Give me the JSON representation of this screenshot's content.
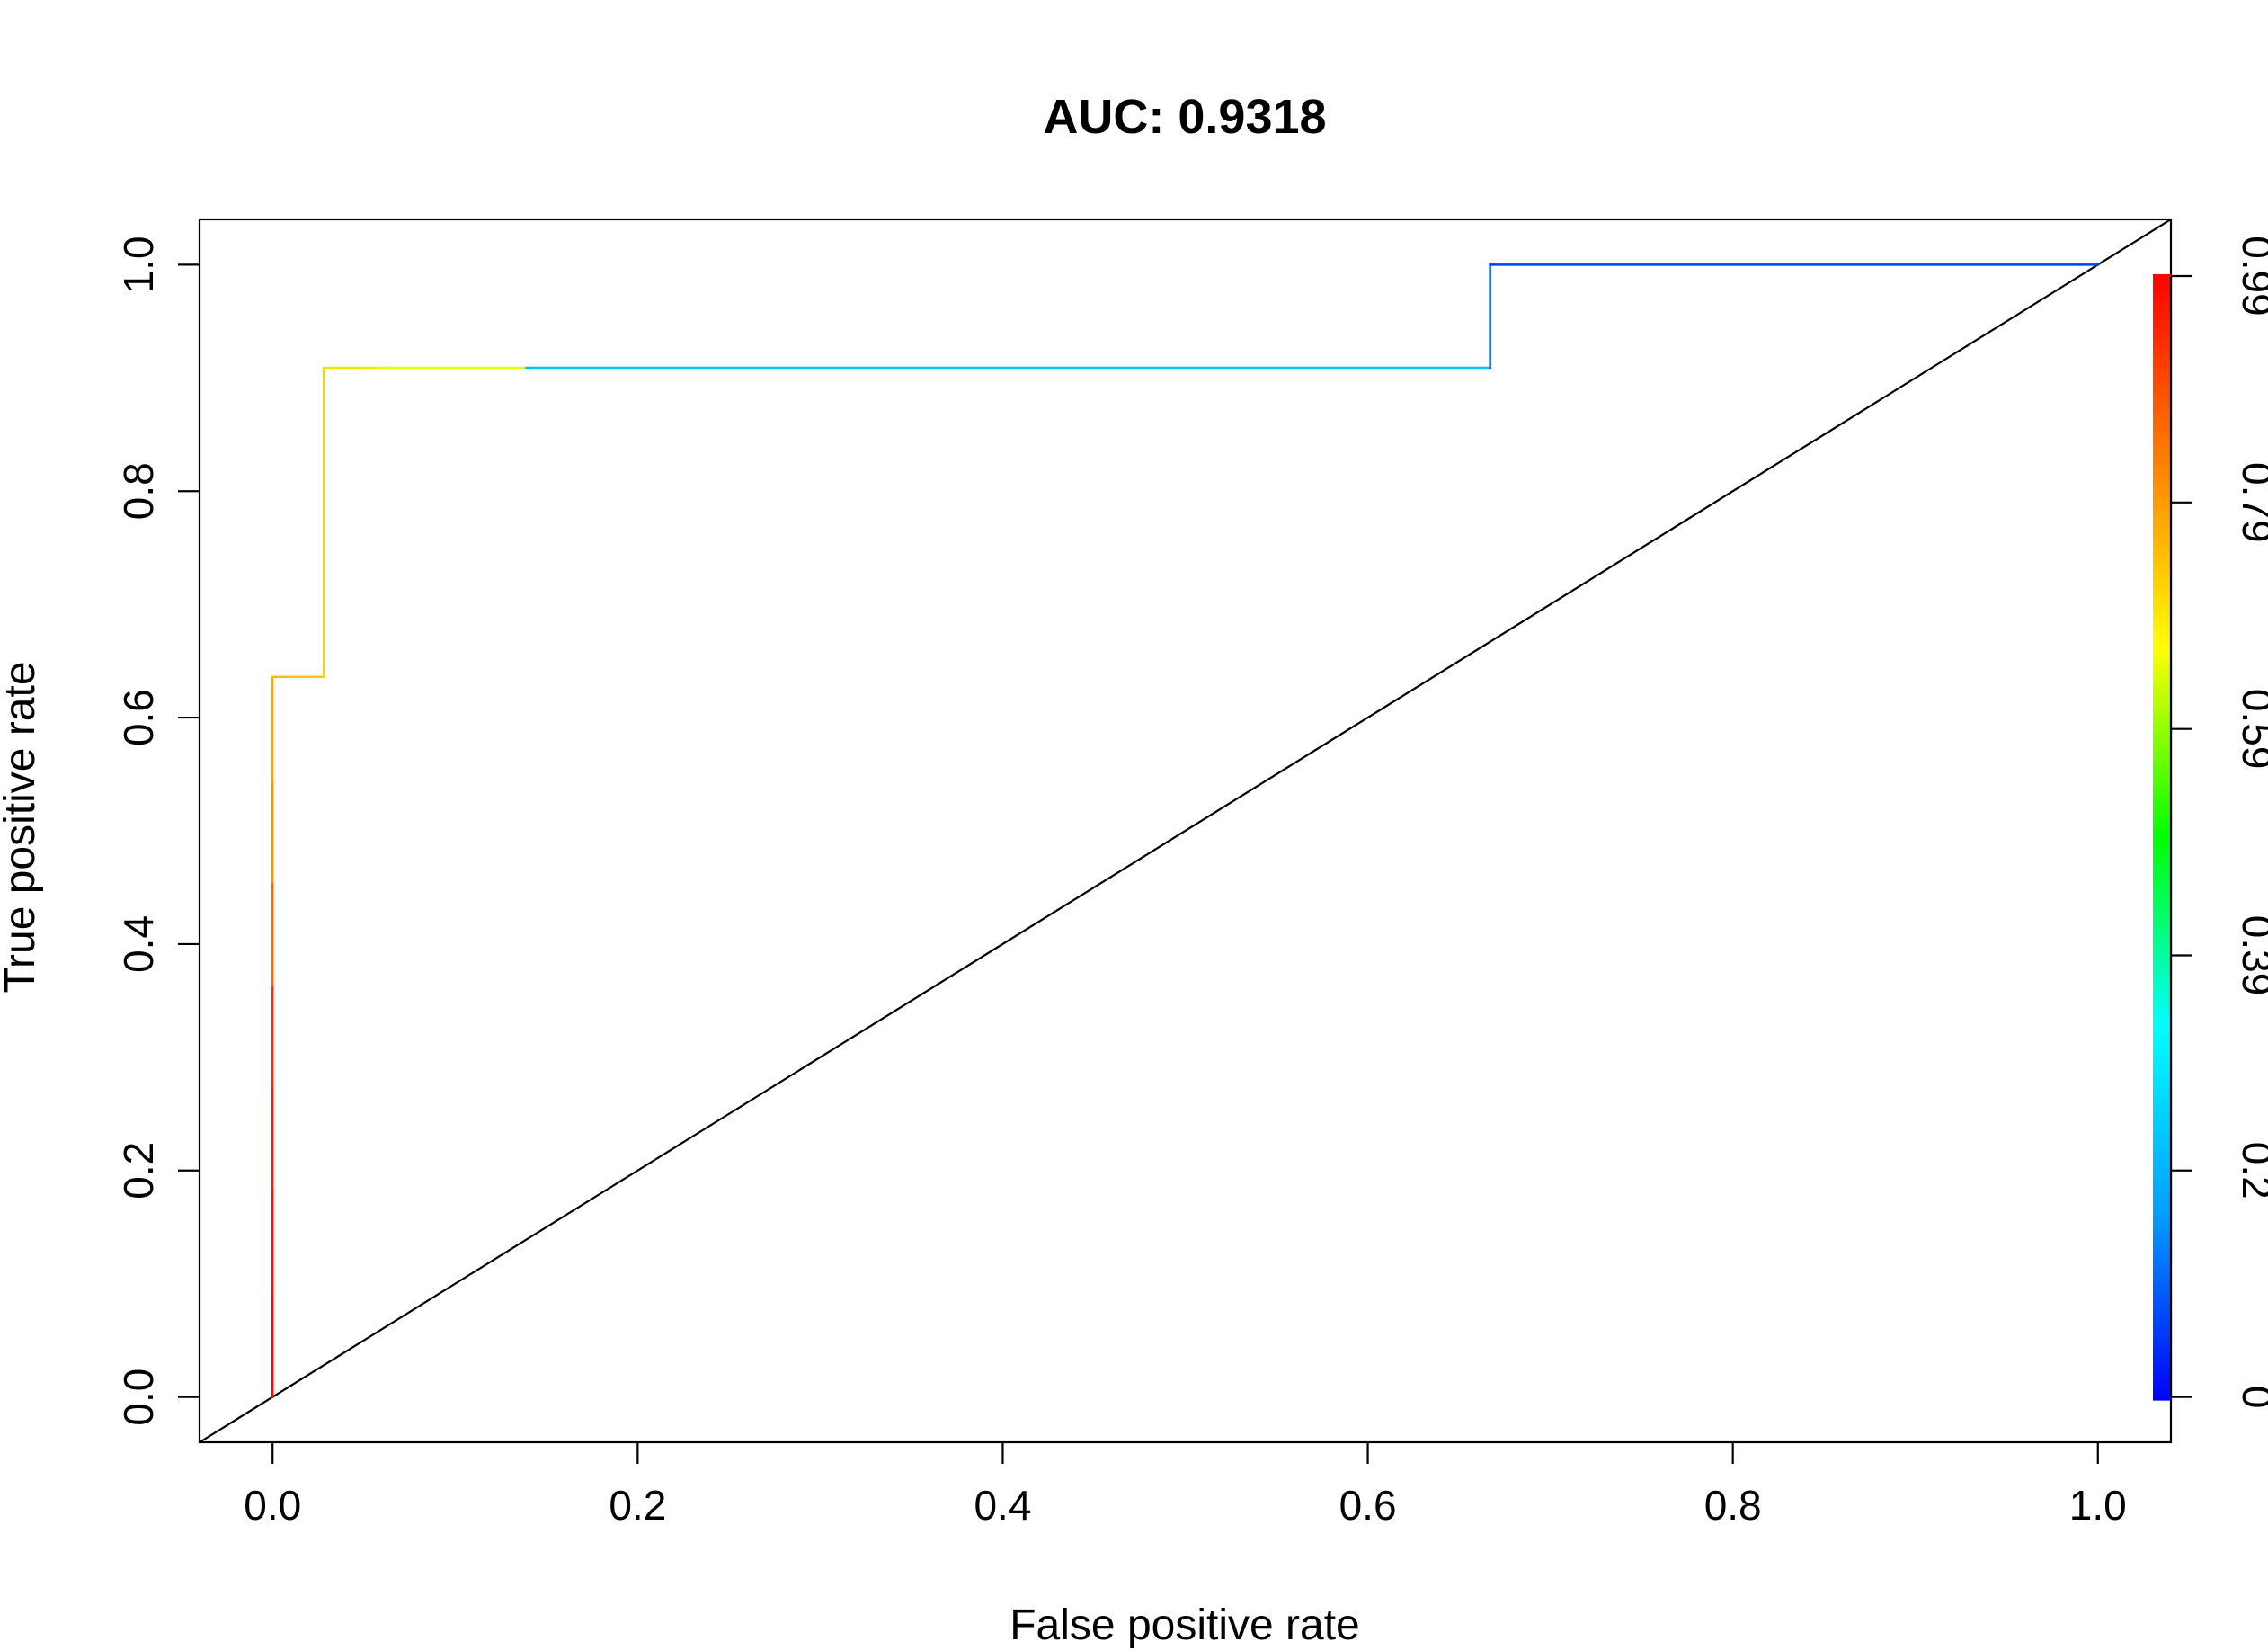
{
  "chart_data": {
    "type": "line",
    "title": "AUC: 0.9318",
    "xlabel": "False positive rate",
    "ylabel": "True positive rate",
    "xlim": [
      -0.04,
      1.04
    ],
    "ylim": [
      -0.04,
      1.04
    ],
    "x_ticks": [
      0.0,
      0.2,
      0.4,
      0.6,
      0.8,
      1.0
    ],
    "x_tick_labels": [
      "0.0",
      "0.2",
      "0.4",
      "0.6",
      "0.8",
      "1.0"
    ],
    "y_ticks": [
      0.0,
      0.2,
      0.4,
      0.6,
      0.8,
      1.0
    ],
    "y_tick_labels": [
      "0.0",
      "0.2",
      "0.4",
      "0.6",
      "0.8",
      "1.0"
    ],
    "grid": false,
    "legend": "none",
    "series": [
      {
        "role": "roc-curve",
        "color_by": "cutoff",
        "points": [
          {
            "x": 0.0,
            "y": 0.0,
            "cutoff": 0.99
          },
          {
            "x": 0.0,
            "y": 0.091,
            "cutoff": 0.98
          },
          {
            "x": 0.0,
            "y": 0.182,
            "cutoff": 0.96
          },
          {
            "x": 0.0,
            "y": 0.273,
            "cutoff": 0.94
          },
          {
            "x": 0.0,
            "y": 0.364,
            "cutoff": 0.86
          },
          {
            "x": 0.0,
            "y": 0.455,
            "cutoff": 0.8
          },
          {
            "x": 0.0,
            "y": 0.545,
            "cutoff": 0.78
          },
          {
            "x": 0.0,
            "y": 0.636,
            "cutoff": 0.74
          },
          {
            "x": 0.028,
            "y": 0.636,
            "cutoff": 0.72
          },
          {
            "x": 0.028,
            "y": 0.909,
            "cutoff": 0.7
          },
          {
            "x": 0.056,
            "y": 0.909,
            "cutoff": 0.64
          },
          {
            "x": 0.139,
            "y": 0.909,
            "cutoff": 0.22
          },
          {
            "x": 0.667,
            "y": 0.909,
            "cutoff": 0.08
          },
          {
            "x": 0.667,
            "y": 1.0,
            "cutoff": 0.06
          },
          {
            "x": 1.0,
            "y": 1.0,
            "cutoff": 0.03
          }
        ]
      },
      {
        "role": "diagonal",
        "color": "#000000",
        "points": [
          {
            "x": -0.04,
            "y": -0.04
          },
          {
            "x": 1.04,
            "y": 1.04
          }
        ]
      }
    ],
    "colorbar": {
      "side": "right",
      "min": 0,
      "max": 0.99,
      "tick_values": [
        0,
        0.2,
        0.39,
        0.59,
        0.79,
        0.99
      ],
      "tick_labels": [
        "0",
        "0.2",
        "0.39",
        "0.59",
        "0.79",
        "0.99"
      ],
      "colors": [
        "#0000FF",
        "#00A0FF",
        "#00FFFF",
        "#00FF00",
        "#FFFF00",
        "#FF8000",
        "#FF0000"
      ]
    }
  }
}
